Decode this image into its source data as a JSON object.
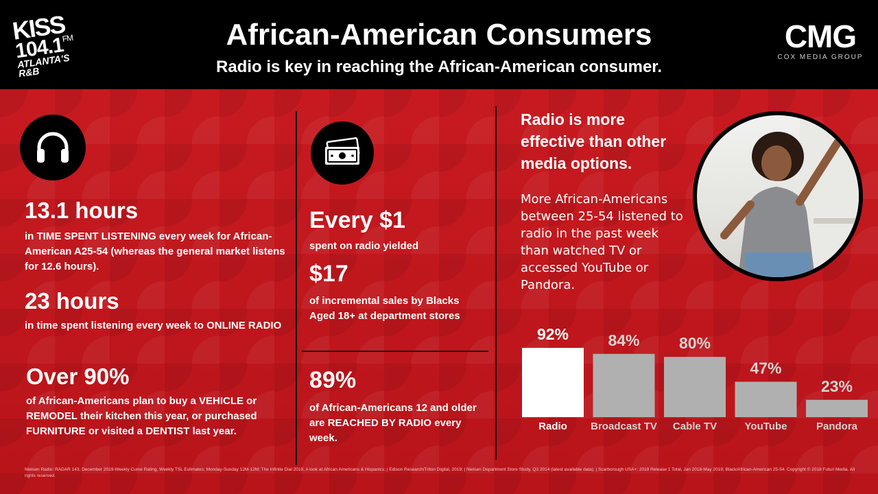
{
  "header": {
    "title": "African-American Consumers",
    "subtitle": "Radio is key in reaching the African-American consumer.",
    "left_logo": {
      "line1": "KISS",
      "line2": "104.1",
      "fm": "FM",
      "line3": "ATLANTA'S R&B"
    },
    "right_logo": {
      "main": "CMG",
      "sub": "COX MEDIA GROUP"
    }
  },
  "icons": {
    "col1": "headphones-icon",
    "col2": "cash-icon"
  },
  "col1": {
    "stat1_big": "13.1 hours",
    "stat1_text": "in TIME SPENT LISTENING every week for African-American A25-54 (whereas the general market listens for 12.6 hours).",
    "stat2_big": "23 hours",
    "stat2_text": "in time spent listening every week to ONLINE RADIO",
    "stat3_big": "Over 90%",
    "stat3_text": "of African-Americans plan to buy a VEHICLE or REMODEL their kitchen this year, or purchased FURNITURE or visited a DENTIST last year."
  },
  "col2": {
    "stat1_big": "Every $1",
    "stat1_text": "spent on radio yielded",
    "stat2_big": "$17",
    "stat2_text": "of incremental sales by Blacks Aged 18+ at department stores",
    "stat3_big": "89%",
    "stat3_text": "of African-Americans 12 and older are REACHED BY RADIO every week."
  },
  "col3": {
    "heading": "Radio is more effective than other media options.",
    "body": "More African-Americans between 25-54 listened to radio in the past week than watched TV or accessed YouTube or Pandora."
  },
  "colors": {
    "background": "#c8161d",
    "header": "#000000",
    "bar_highlight": "#ffffff",
    "bar_other": "#b0b0b0",
    "label_other": "#d4d4d4"
  },
  "chart_data": {
    "type": "bar",
    "categories": [
      "Radio",
      "Broadcast TV",
      "Cable TV",
      "YouTube",
      "Pandora"
    ],
    "values": [
      92,
      84,
      80,
      47,
      23
    ],
    "value_labels": [
      "92%",
      "84%",
      "80%",
      "47%",
      "23%"
    ],
    "title": "",
    "xlabel": "",
    "ylabel": "",
    "ylim": [
      0,
      100
    ],
    "grid": false,
    "legend": "none"
  },
  "footnote": "Nielsen Radio: RADAR 143, December 2019-Weekly Cume Rating, Weekly TSL Estimates; Monday-Sunday 12M-12M; The Infinite Dial 2019, A look at African Americans & Hispanics; | Edison Research/Triton Digital, 2019; | Nielsen Department Store Study, Q3 2014 (latest available data); | Scarborough USA+; 2019 Release 1 Total, Jan 2018-May 2019; Black/African-American 25-54. Copyright © 2018 Futuri Media. All rights reserved."
}
